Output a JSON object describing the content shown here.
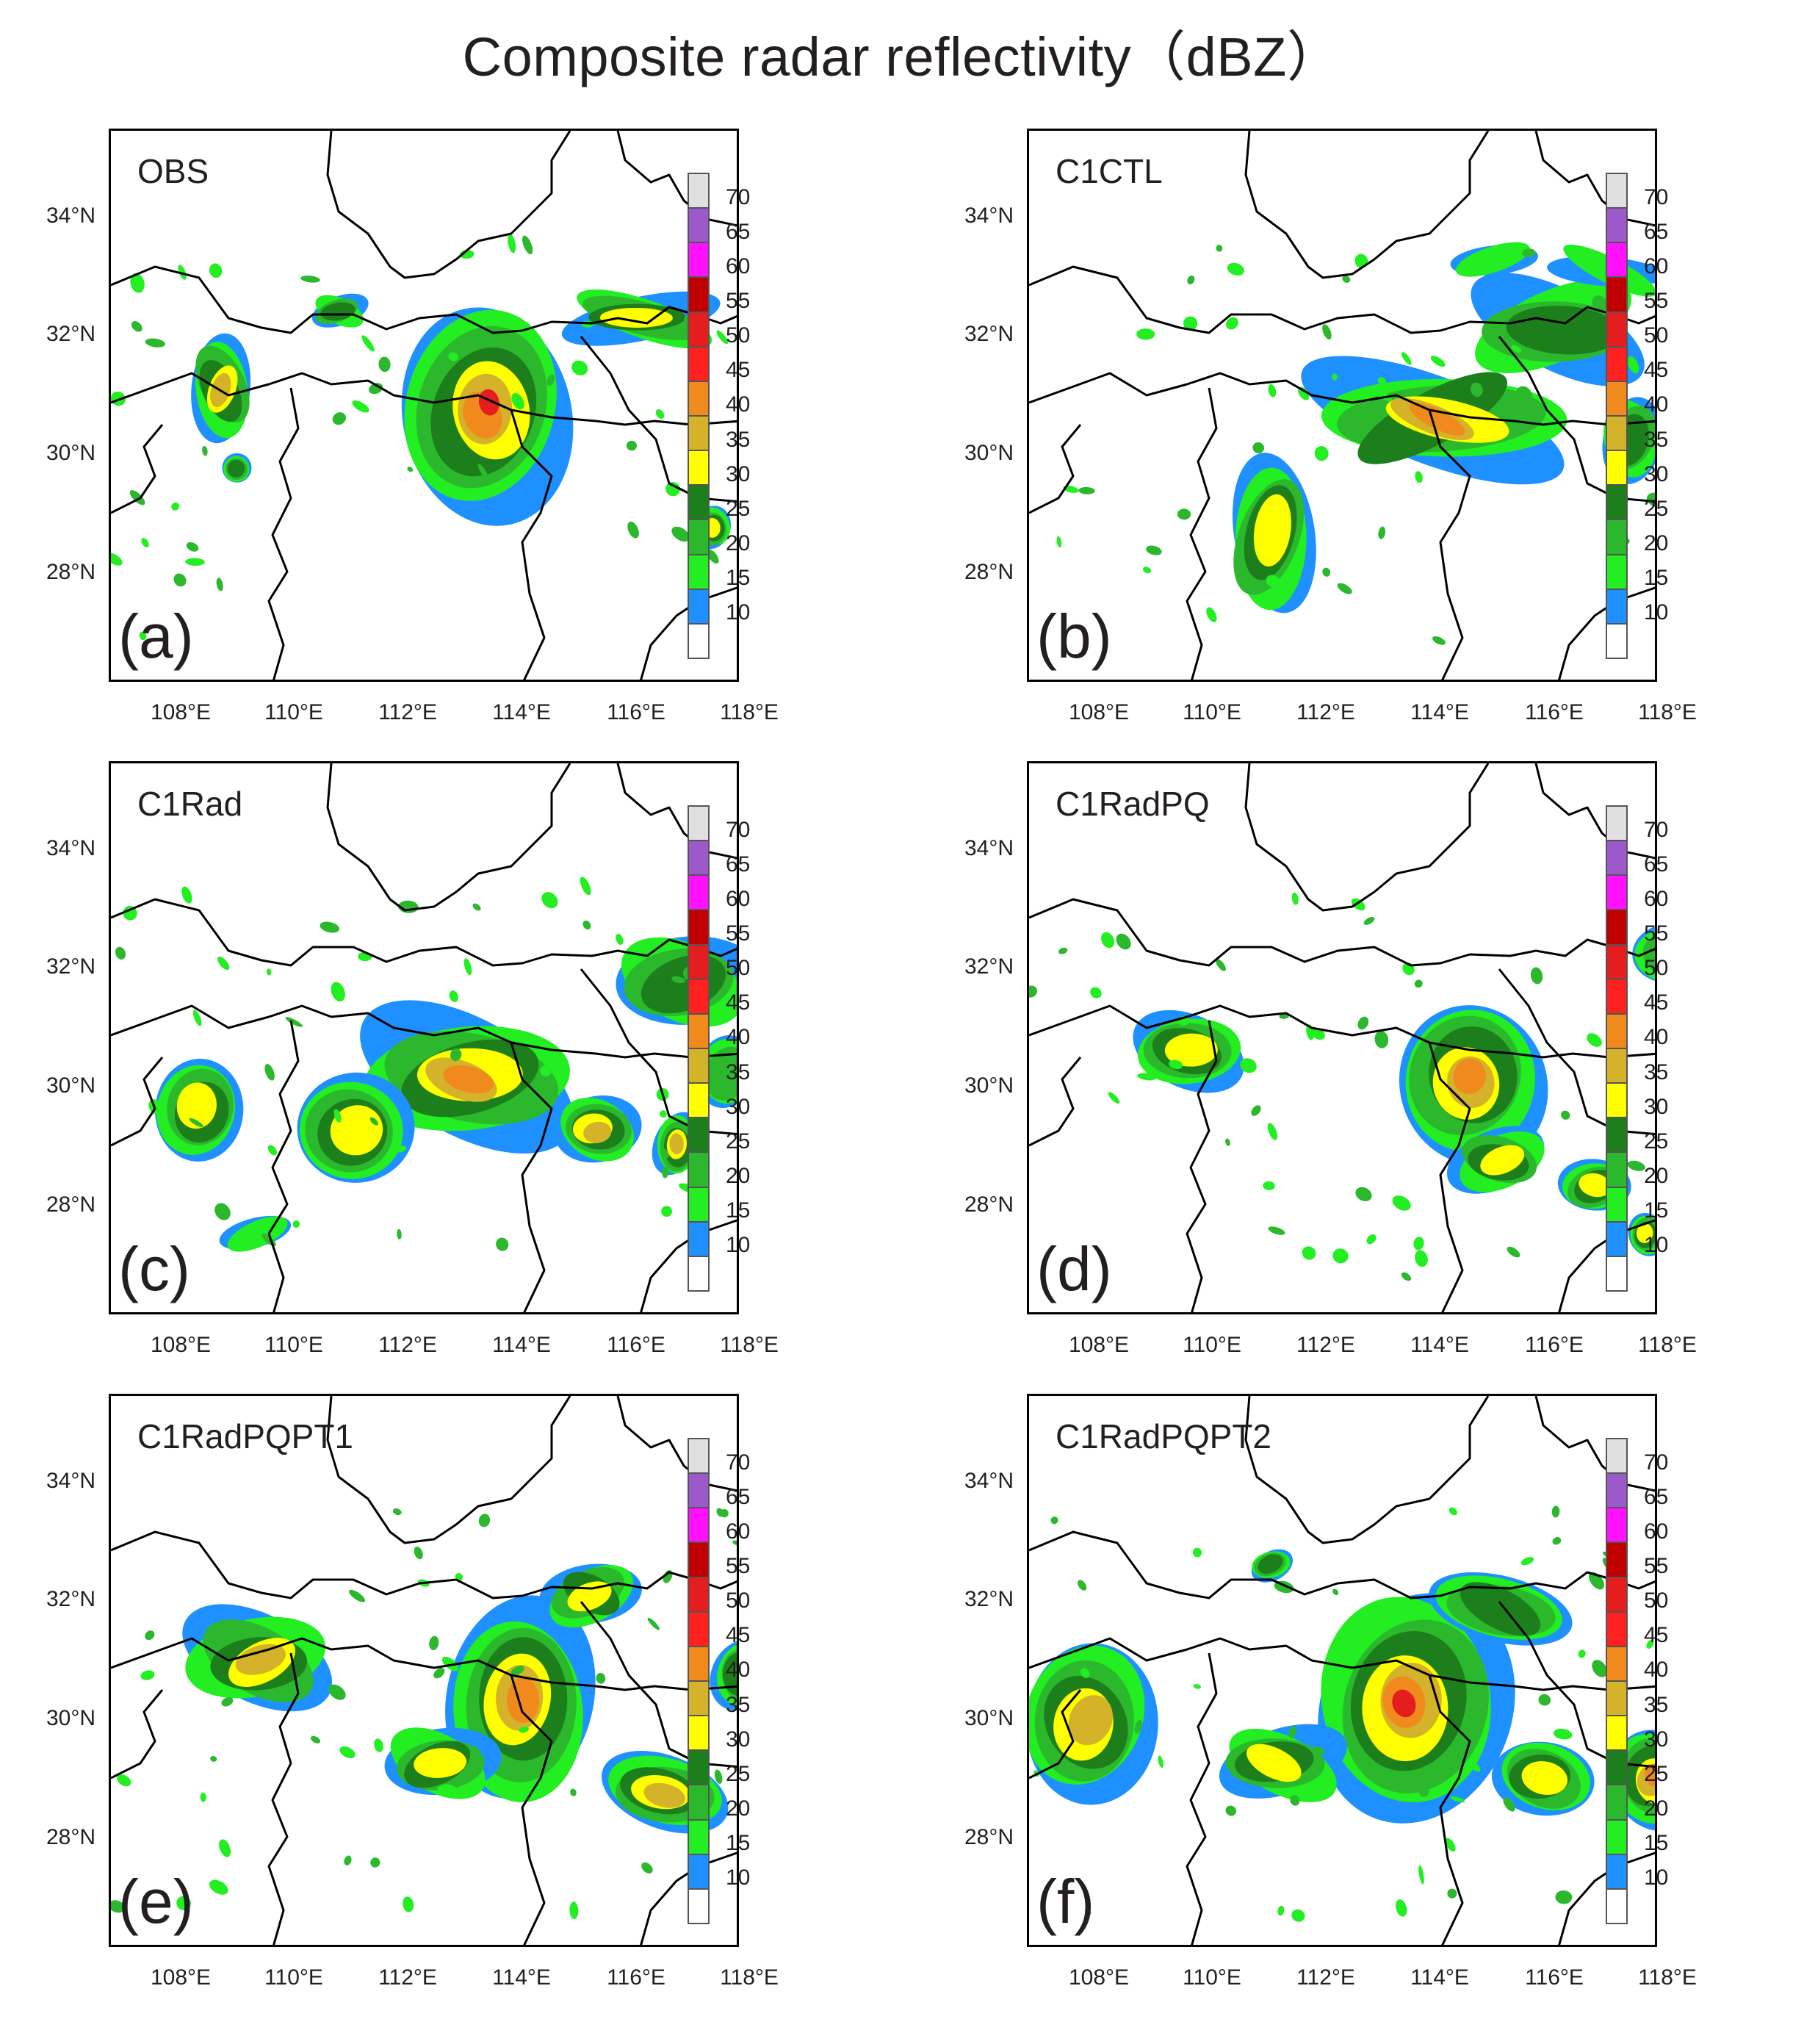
{
  "title": "Composite radar reflectivity（dBZ）",
  "lat_labels": [
    "34°N",
    "32°N",
    "30°N",
    "28°N"
  ],
  "lon_labels": [
    "108°E",
    "110°E",
    "112°E",
    "114°E",
    "116°E",
    "118°E"
  ],
  "colorbar": {
    "levels": [
      "70",
      "65",
      "60",
      "55",
      "50",
      "45",
      "40",
      "35",
      "30",
      "25",
      "20",
      "15",
      "10"
    ],
    "colors": [
      "#e0e0e0",
      "#9b59c9",
      "#ff10ff",
      "#c00000",
      "#e41e1e",
      "#ff2020",
      "#f08a1c",
      "#d4b22a",
      "#ffff00",
      "#1c7f1c",
      "#2cb82c",
      "#22ee22",
      "#1e90ff",
      "#ffffff"
    ]
  },
  "panels": [
    {
      "name": "OBS",
      "letter": "(a)"
    },
    {
      "name": "C1CTL",
      "letter": "(b)"
    },
    {
      "name": "C1Rad",
      "letter": "(c)"
    },
    {
      "name": "C1RadPQ",
      "letter": "(d)"
    },
    {
      "name": "C1RadPQPT1",
      "letter": "(e)"
    },
    {
      "name": "C1RadPQPT2",
      "letter": "(f)"
    }
  ]
}
